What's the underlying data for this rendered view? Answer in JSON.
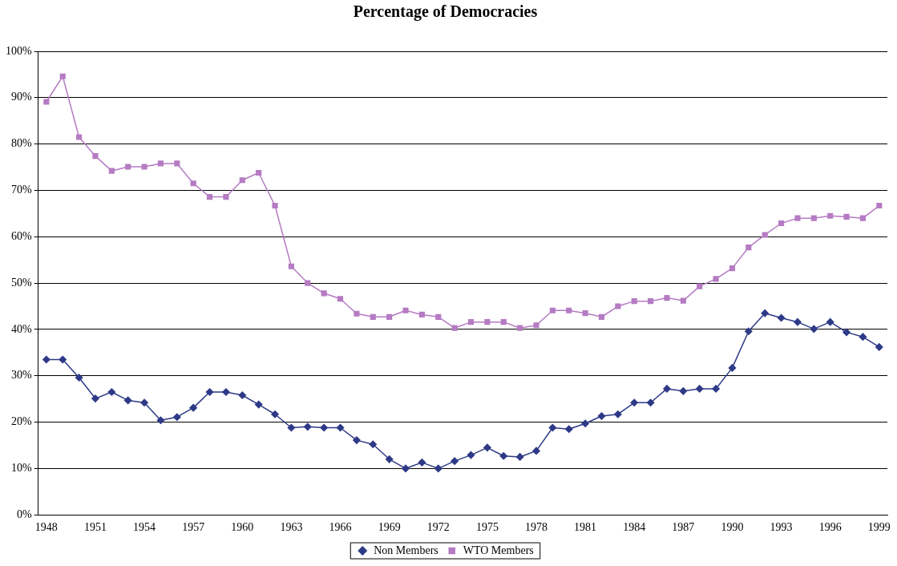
{
  "chart_data": {
    "type": "line",
    "title": "Percentage of Democracies",
    "categories": [
      "1948",
      null,
      null,
      "1951",
      null,
      null,
      "1954",
      null,
      null,
      "1957",
      null,
      null,
      "1960",
      null,
      null,
      "1963",
      null,
      null,
      "1966",
      null,
      null,
      "1969",
      null,
      null,
      "1972",
      null,
      null,
      "1975",
      null,
      null,
      "1978",
      null,
      null,
      "1981",
      null,
      null,
      "1984",
      null,
      null,
      "1987",
      null,
      null,
      "1990",
      null,
      null,
      "1993",
      null,
      null,
      "1996",
      null,
      null,
      "1999"
    ],
    "series": [
      {
        "name": "Non Members",
        "color": "#2e3a87",
        "marker": "diamond",
        "values": [
          33.5,
          33.5,
          29.6,
          25.1,
          26.5,
          24.7,
          24.2,
          20.4,
          21.1,
          23.1,
          26.5,
          26.5,
          25.8,
          23.8,
          21.7,
          18.8,
          19.0,
          18.8,
          18.8,
          16.1,
          15.2,
          12.0,
          10.0,
          11.3,
          10.0,
          11.6,
          12.9,
          14.5,
          12.7,
          12.5,
          13.8,
          18.8,
          18.5,
          19.7,
          21.3,
          21.7,
          24.2,
          24.2,
          27.2,
          26.7,
          27.2,
          27.2,
          31.7,
          39.6,
          43.5,
          42.5,
          41.6,
          40.1,
          41.6,
          39.4,
          38.4,
          36.2
        ]
      },
      {
        "name": "WTO Members",
        "color": "#b57bc3",
        "marker": "square",
        "values": [
          89.1,
          94.6,
          81.5,
          77.4,
          74.2,
          75.1,
          75.1,
          75.8,
          75.8,
          71.5,
          68.6,
          68.6,
          72.2,
          73.8,
          66.7,
          53.6,
          50.0,
          47.8,
          46.6,
          43.4,
          42.7,
          42.7,
          44.1,
          43.2,
          42.7,
          40.3,
          41.6,
          41.6,
          41.6,
          40.3,
          40.9,
          44.1,
          44.1,
          43.5,
          42.7,
          45.0,
          46.1,
          46.1,
          46.8,
          46.2,
          49.3,
          50.9,
          53.2,
          57.7,
          60.4,
          62.9,
          64.0,
          64.0,
          64.5,
          64.3,
          64.0,
          66.7
        ]
      }
    ],
    "ylim": [
      0,
      100
    ],
    "yticks": [
      {
        "value": 0,
        "label": "0%"
      },
      {
        "value": 10,
        "label": "10%"
      },
      {
        "value": 20,
        "label": "20%"
      },
      {
        "value": 30,
        "label": "30%"
      },
      {
        "value": 40,
        "label": "40%"
      },
      {
        "value": 50,
        "label": "50%"
      },
      {
        "value": 60,
        "label": "60%"
      },
      {
        "value": 70,
        "label": "70%"
      },
      {
        "value": 80,
        "label": "80%"
      },
      {
        "value": 90,
        "label": "90%"
      },
      {
        "value": 100,
        "label": "100%"
      }
    ],
    "grid": "y",
    "legend": "bottom",
    "line_style": "solid"
  }
}
